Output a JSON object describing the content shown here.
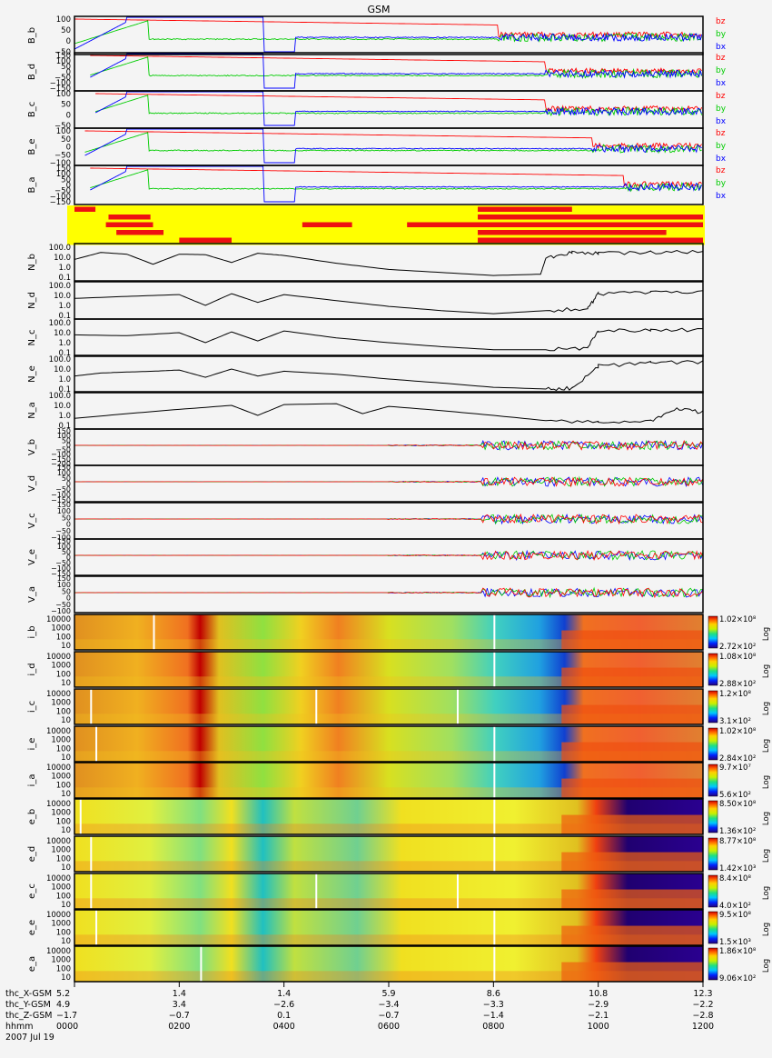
{
  "title": "GSM",
  "colors": {
    "background": "#f4f4f4",
    "frame": "#000000",
    "bz": "#ff0000",
    "by": "#00cc00",
    "bx": "#0000ff",
    "status_bg": "#ffff00",
    "status_on": "#ee1111",
    "density": "#000000"
  },
  "chart_data": [
    {
      "type": "line",
      "group": "magnetic_field",
      "panels": [
        {
          "label": "B_b",
          "yticks": [
            "100",
            "50",
            "0",
            "−50"
          ],
          "legend": [
            "bz",
            "by",
            "bx"
          ]
        },
        {
          "label": "B_d",
          "yticks": [
            "150",
            "100",
            "50",
            "0",
            "−50",
            "−100",
            "−150"
          ],
          "legend": [
            "bz",
            "by",
            "bx"
          ]
        },
        {
          "label": "B_c",
          "yticks": [
            "100",
            "50",
            "0",
            "−50"
          ],
          "legend": [
            "bz",
            "by",
            "bx"
          ]
        },
        {
          "label": "B_e",
          "yticks": [
            "100",
            "50",
            "0",
            "−50",
            "−100"
          ],
          "legend": [
            "bz",
            "by",
            "bx"
          ]
        },
        {
          "label": "B_a",
          "yticks": [
            "150",
            "100",
            "50",
            "0",
            "−50",
            "−100",
            "−150"
          ],
          "legend": [
            "bz",
            "by",
            "bx"
          ]
        }
      ],
      "series": [
        {
          "name": "bz",
          "color": "#ff0000"
        },
        {
          "name": "by",
          "color": "#00cc00"
        },
        {
          "name": "bx",
          "color": "#0000ff"
        }
      ]
    },
    {
      "type": "table",
      "group": "mode_status",
      "rows": [
        {
          "segments": [
            [
              0.0,
              0.4
            ],
            [
              7.7,
              9.5
            ]
          ]
        },
        {
          "segments": [
            [
              0.65,
              1.45
            ],
            [
              7.7,
              12.0
            ]
          ]
        },
        {
          "segments": [
            [
              0.6,
              1.5
            ],
            [
              4.35,
              5.3
            ],
            [
              6.35,
              12.0
            ]
          ]
        },
        {
          "segments": [
            [
              0.8,
              1.7
            ],
            [
              7.7,
              11.3
            ]
          ]
        },
        {
          "segments": [
            [
              2.0,
              3.0
            ],
            [
              7.7,
              12.0
            ]
          ]
        }
      ],
      "xlim": [
        0,
        12
      ]
    },
    {
      "type": "line",
      "group": "density",
      "yscale": "log",
      "panels": [
        {
          "label": "N_b",
          "yticks": [
            "100.0",
            "10.0",
            "1.0",
            "0.1"
          ],
          "x": [
            0,
            0.5,
            1.0,
            1.5,
            2.0,
            2.5,
            3.0,
            3.5,
            4.0,
            5.0,
            6.0,
            7.0,
            8.0,
            8.9,
            9.0,
            9.5,
            10.0,
            11.0,
            12.0
          ],
          "y": [
            6,
            30,
            20,
            2,
            20,
            18,
            3,
            25,
            15,
            2.5,
            0.6,
            0.3,
            0.15,
            0.2,
            8,
            30,
            25,
            30,
            35
          ]
        },
        {
          "label": "N_d",
          "yticks": [
            "100.0",
            "10.0",
            "1.0",
            "0.1"
          ],
          "x": [
            0,
            1.0,
            2.0,
            2.5,
            3.0,
            3.5,
            4.0,
            5.0,
            6.0,
            7.0,
            8.0,
            9.0,
            9.8,
            10.0,
            11.0,
            12.0
          ],
          "y": [
            5,
            8,
            12,
            1,
            15,
            2,
            12,
            3,
            0.8,
            0.3,
            0.15,
            0.3,
            0.5,
            15,
            20,
            25
          ]
        },
        {
          "label": "N_c",
          "yticks": [
            "100.0",
            "10.0",
            "1.0",
            "0.1"
          ],
          "x": [
            0,
            1.0,
            2.0,
            2.5,
            3.0,
            3.5,
            4.0,
            5.0,
            6.0,
            7.0,
            8.0,
            9.0,
            9.8,
            10.0,
            11.0,
            12.0
          ],
          "y": [
            6,
            5,
            10,
            1,
            12,
            1.5,
            15,
            3,
            1,
            0.4,
            0.2,
            0.2,
            0.3,
            15,
            18,
            20
          ]
        },
        {
          "label": "N_e",
          "yticks": [
            "100.0",
            "10.0",
            "1.0",
            "0.1"
          ],
          "x": [
            0,
            0.5,
            1.0,
            1.5,
            2.0,
            2.5,
            3.0,
            3.5,
            4.0,
            5.0,
            6.0,
            7.0,
            8.0,
            9.0,
            9.5,
            10.0,
            11.0,
            12.0
          ],
          "y": [
            2,
            4,
            5,
            6,
            8,
            1.5,
            10,
            2,
            6,
            3,
            1,
            0.4,
            0.15,
            0.1,
            0.12,
            20,
            40,
            50
          ]
        },
        {
          "label": "N_a",
          "yticks": [
            "100.0",
            "10.0",
            "1.0",
            "0.1"
          ],
          "x": [
            0,
            1.0,
            2.0,
            3.0,
            3.5,
            4.0,
            5.0,
            5.5,
            6.0,
            7.0,
            8.0,
            9.0,
            10.0,
            11.0,
            11.5,
            12.0
          ],
          "y": [
            0.5,
            1.5,
            4,
            10,
            1,
            12,
            15,
            1.5,
            8,
            3,
            1,
            0.3,
            0.2,
            0.3,
            5,
            2
          ]
        }
      ]
    },
    {
      "type": "line",
      "group": "velocity",
      "panels": [
        {
          "label": "V_b",
          "yticks": [
            "150",
            "100",
            "50",
            "0",
            "−50",
            "−100",
            "−150",
            "−200"
          ]
        },
        {
          "label": "V_d",
          "yticks": [
            "150",
            "100",
            "50",
            "0",
            "−50",
            "−100",
            "−150"
          ]
        },
        {
          "label": "V_c",
          "yticks": [
            "150",
            "100",
            "50",
            "0",
            "−50",
            "−100"
          ]
        },
        {
          "label": "V_e",
          "yticks": [
            "150",
            "100",
            "50",
            "0",
            "−50",
            "−100",
            "−150"
          ]
        },
        {
          "label": "V_a",
          "yticks": [
            "150",
            "100",
            "50",
            "0",
            "−50",
            "−100"
          ]
        }
      ]
    },
    {
      "type": "heatmap",
      "group": "spectrograms",
      "yticks": [
        "10000",
        "1000",
        "100",
        "10"
      ],
      "colorbar_label": "Log",
      "panels": [
        {
          "label": "i_b",
          "cmax": "1.02×10⁸",
          "cmin": "2.72×10²",
          "kind": "ion"
        },
        {
          "label": "i_d",
          "cmax": "1.08×10⁸",
          "cmin": "2.88×10²",
          "kind": "ion"
        },
        {
          "label": "i_c",
          "cmax": "1.2×10⁸",
          "cmin": "3.1×10²",
          "kind": "ion"
        },
        {
          "label": "i_e",
          "cmax": "1.02×10⁸",
          "cmin": "2.84×10²",
          "kind": "ion"
        },
        {
          "label": "i_a",
          "cmax": "9.7×10⁷",
          "cmin": "5.6×10²",
          "kind": "ion"
        },
        {
          "label": "e_b",
          "cmax": "8.50×10⁸",
          "cmin": "1.36×10²",
          "kind": "electron"
        },
        {
          "label": "e_d",
          "cmax": "8.77×10⁸",
          "cmin": "1.42×10³",
          "kind": "electron"
        },
        {
          "label": "e_c",
          "cmax": "8.4×10⁸",
          "cmin": "4.0×10²",
          "kind": "electron"
        },
        {
          "label": "e_e",
          "cmax": "9.5×10⁸",
          "cmin": "1.5×10³",
          "kind": "electron"
        },
        {
          "label": "e_a",
          "cmax": "1.86×10⁸",
          "cmin": "9.06×10²",
          "kind": "electron"
        }
      ]
    }
  ],
  "xaxis": {
    "rows": [
      {
        "label": "thc_X-GSM",
        "values": [
          "5.2",
          "1.4",
          "1.4",
          "5.9",
          "8.6",
          "10.8",
          "12.3"
        ]
      },
      {
        "label": "thc_Y-GSM",
        "values": [
          "4.9",
          "3.4",
          "−2.6",
          "−3.4",
          "−3.3",
          "−2.9",
          "−2.2"
        ]
      },
      {
        "label": "thc_Z-GSM",
        "values": [
          "−1.7",
          "−0.7",
          "0.1",
          "−0.7",
          "−1.4",
          "−2.1",
          "−2.8"
        ]
      },
      {
        "label": "hhmm",
        "values": [
          "0000",
          "0200",
          "0400",
          "0600",
          "0800",
          "1000",
          "1200"
        ]
      }
    ],
    "date": "2007 Jul 19",
    "hours": [
      0,
      2,
      4,
      6,
      8,
      10,
      12
    ]
  }
}
